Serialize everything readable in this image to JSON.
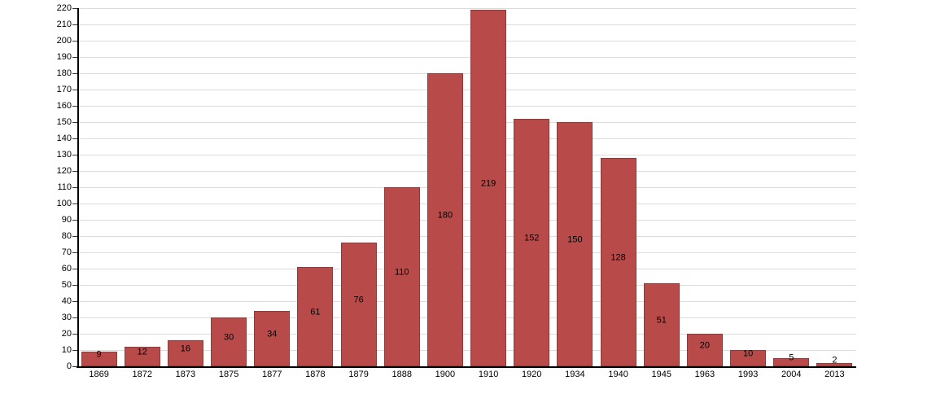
{
  "chart_data": {
    "type": "bar",
    "title": "",
    "xlabel": "",
    "ylabel": "",
    "categories": [
      "1869",
      "1872",
      "1873",
      "1875",
      "1877",
      "1878",
      "1879",
      "1888",
      "1900",
      "1910",
      "1920",
      "1934",
      "1940",
      "1945",
      "1963",
      "1993",
      "2004",
      "2013"
    ],
    "values": [
      9,
      12,
      16,
      30,
      34,
      61,
      76,
      110,
      180,
      219,
      152,
      150,
      128,
      51,
      20,
      10,
      5,
      2
    ],
    "bar_labels": [
      "9",
      "12",
      "16",
      "30",
      "34",
      "61",
      "76",
      "110",
      "180",
      "219",
      "152",
      "150",
      "128",
      "51",
      "20",
      "10",
      "5",
      "2"
    ],
    "ylim": [
      0,
      220
    ],
    "ytick_step": 10,
    "ytick_labels": [
      "0",
      "10",
      "20",
      "30",
      "40",
      "50",
      "60",
      "70",
      "80",
      "90",
      "100",
      "110",
      "120",
      "130",
      "140",
      "150",
      "160",
      "170",
      "180",
      "190",
      "200",
      "210",
      "220"
    ],
    "grid": true,
    "legend": "none",
    "colors": {
      "bar_fill": "#b94a4a",
      "bar_border": "#8e3b3b",
      "gridline": "#dcdcdc",
      "axis": "#000000",
      "tick": "#333333",
      "text": "#000000",
      "background": "#ffffff"
    }
  }
}
